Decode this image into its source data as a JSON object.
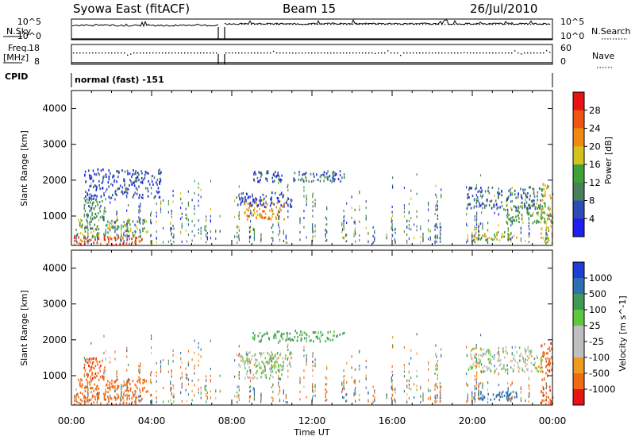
{
  "header": {
    "station": "Syowa East (fitACF)",
    "beam": "Beam 15",
    "date": "26/Jul/2010"
  },
  "strip_labels": {
    "nsky": "N.Sky",
    "freq_line1": "Freq.",
    "freq_line2": "[MHz]",
    "cpid": "CPID",
    "nsearch": "N.Search",
    "nave": "Nave",
    "left_top_tick": "10^5",
    "left_bottom_tick": "10^0",
    "right_top_tick": "10^5",
    "right_bottom_tick": "10^0",
    "freq_hi": "18",
    "freq_lo": "8",
    "nave_hi": "60",
    "nave_lo": "0",
    "cpid_text": "normal (fast) -151"
  },
  "axes": {
    "ylabel": "Slant Range [km]",
    "yticks": [
      "1000",
      "2000",
      "3000",
      "4000"
    ],
    "xlabel": "Time UT",
    "xticks": [
      "00:00",
      "04:00",
      "08:00",
      "12:00",
      "16:00",
      "20:00",
      "00:00"
    ]
  },
  "colorbars": {
    "power": {
      "label": "Power [dB]",
      "ticks": [
        "4",
        "8",
        "12",
        "16",
        "20",
        "24",
        "28"
      ],
      "colors": [
        "#1e1eee",
        "#2e4cb2",
        "#4a7f5c",
        "#3fa13a",
        "#d6c21c",
        "#ee8a12",
        "#ef5512",
        "#e81414"
      ]
    },
    "velocity": {
      "label": "Velocity [m s^-1]",
      "ticks": [
        "1000",
        "500",
        "100",
        "25",
        "-25",
        "-100",
        "-500",
        "-1000"
      ],
      "colors": [
        "#1e3ed6",
        "#2e6fb2",
        "#3f9a5a",
        "#5cc83e",
        "#bfbfbf",
        "#bfbfbf",
        "#f09a1e",
        "#f06a14",
        "#e81414"
      ]
    }
  },
  "chart_data": [
    {
      "type": "heatmap",
      "title": "Power",
      "xlabel": "Time UT",
      "ylabel": "Slant Range [km]",
      "x_range": [
        "00:00",
        "24:00"
      ],
      "ylim": [
        180,
        4500
      ],
      "colorbar_label": "Power [dB]",
      "colorbar_range": [
        0,
        30
      ],
      "regions": [
        {
          "t0": 0.1,
          "t1": 3.5,
          "r0": 200,
          "r1": 450,
          "value": 28
        },
        {
          "t0": 0.2,
          "t1": 3.8,
          "r0": 400,
          "r1": 900,
          "value": 14
        },
        {
          "t0": 0.6,
          "t1": 1.7,
          "r0": 900,
          "r1": 1500,
          "value": 11
        },
        {
          "t0": 0.6,
          "t1": 4.5,
          "r0": 1500,
          "r1": 2300,
          "value": 5
        },
        {
          "t0": 8.6,
          "t1": 10.6,
          "r0": 900,
          "r1": 1450,
          "value": 22
        },
        {
          "t0": 8.2,
          "t1": 11.0,
          "r0": 1250,
          "r1": 1650,
          "value": 6
        },
        {
          "t0": 9.0,
          "t1": 10.5,
          "r0": 1950,
          "r1": 2250,
          "value": 7
        },
        {
          "t0": 11.0,
          "t1": 13.6,
          "r0": 1950,
          "r1": 2250,
          "value": 8
        },
        {
          "t0": 19.7,
          "t1": 23.5,
          "r0": 1200,
          "r1": 1800,
          "value": 7
        },
        {
          "t0": 21.5,
          "t1": 23.5,
          "r0": 800,
          "r1": 1350,
          "value": 13
        },
        {
          "t0": 20.0,
          "t1": 22.2,
          "r0": 300,
          "r1": 550,
          "value": 18
        },
        {
          "t0": 23.4,
          "t1": 24.0,
          "r0": 200,
          "r1": 1900,
          "value": 18
        }
      ]
    },
    {
      "type": "heatmap",
      "title": "Velocity",
      "xlabel": "Time UT",
      "ylabel": "Slant Range [km]",
      "x_range": [
        "00:00",
        "24:00"
      ],
      "ylim": [
        180,
        4500
      ],
      "colorbar_label": "Velocity [m s^-1]",
      "colorbar_range": [
        -1000,
        1000
      ],
      "regions": [
        {
          "t0": 0.1,
          "t1": 3.5,
          "r0": 200,
          "r1": 450,
          "value": -300
        },
        {
          "t0": 0.2,
          "t1": 3.8,
          "r0": 400,
          "r1": 900,
          "value": -200
        },
        {
          "t0": 0.6,
          "t1": 1.7,
          "r0": 900,
          "r1": 1500,
          "value": -400
        },
        {
          "t0": 8.6,
          "t1": 10.6,
          "r0": 900,
          "r1": 1450,
          "value": 0
        },
        {
          "t0": 8.2,
          "t1": 11.0,
          "r0": 1250,
          "r1": 1650,
          "value": 0
        },
        {
          "t0": 9.0,
          "t1": 13.6,
          "r0": 1950,
          "r1": 2250,
          "value": 40
        },
        {
          "t0": 19.7,
          "t1": 23.5,
          "r0": 1100,
          "r1": 1800,
          "value": 0
        },
        {
          "t0": 20.0,
          "t1": 22.2,
          "r0": 300,
          "r1": 550,
          "value": 200
        },
        {
          "t0": 23.4,
          "t1": 24.0,
          "r0": 200,
          "r1": 1900,
          "value": -400
        }
      ]
    }
  ]
}
